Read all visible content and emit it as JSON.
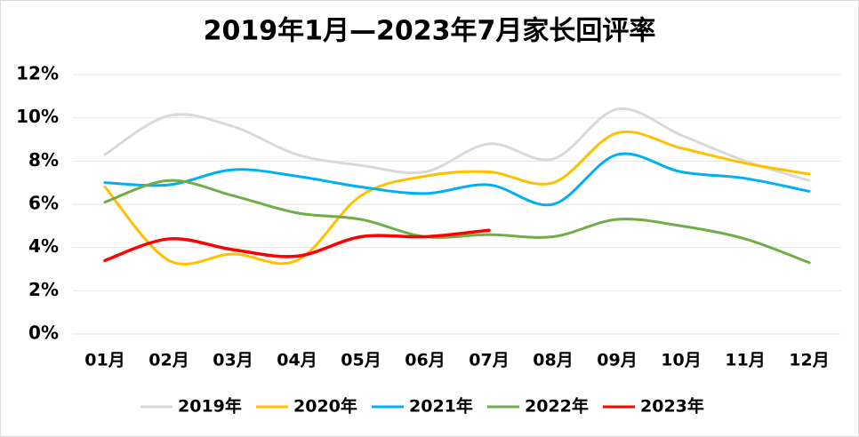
{
  "chart_data": {
    "type": "line",
    "title": "2019年1月—2023年7月家长回评率",
    "categories": [
      "01月",
      "02月",
      "03月",
      "04月",
      "05月",
      "06月",
      "07月",
      "08月",
      "09月",
      "10月",
      "11月",
      "12月"
    ],
    "series": [
      {
        "name": "2019年",
        "color": "#d9d9d9",
        "values": [
          8.3,
          10.1,
          9.6,
          8.3,
          7.8,
          7.5,
          8.8,
          8.1,
          10.4,
          9.2,
          8.0,
          7.1
        ]
      },
      {
        "name": "2020年",
        "color": "#ffc000",
        "values": [
          6.8,
          3.4,
          3.7,
          3.4,
          6.4,
          7.3,
          7.5,
          7.0,
          9.3,
          8.6,
          7.9,
          7.4
        ]
      },
      {
        "name": "2021年",
        "color": "#00b0f0",
        "values": [
          7.0,
          6.9,
          7.6,
          7.3,
          6.8,
          6.5,
          6.9,
          6.0,
          8.3,
          7.5,
          7.2,
          6.6
        ]
      },
      {
        "name": "2022年",
        "color": "#70ad47",
        "values": [
          6.1,
          7.1,
          6.4,
          5.6,
          5.3,
          4.5,
          4.6,
          4.5,
          5.3,
          5.0,
          4.4,
          3.3
        ]
      },
      {
        "name": "2023年",
        "color": "#ff0000",
        "values": [
          3.4,
          4.4,
          3.9,
          3.6,
          4.5,
          4.5,
          4.8,
          null,
          null,
          null,
          null,
          null
        ]
      }
    ],
    "ylim": [
      0,
      12
    ],
    "yticks": [
      {
        "value": 0,
        "label": "0%"
      },
      {
        "value": 2,
        "label": "2%"
      },
      {
        "value": 4,
        "label": "4%"
      },
      {
        "value": 6,
        "label": "6%"
      },
      {
        "value": 8,
        "label": "8%"
      },
      {
        "value": 10,
        "label": "10%"
      },
      {
        "value": 12,
        "label": "12%"
      }
    ],
    "grid": true,
    "legend": "bottom"
  }
}
